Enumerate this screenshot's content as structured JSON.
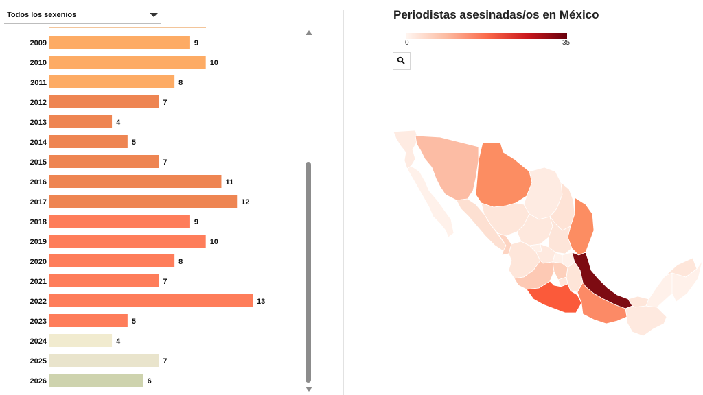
{
  "filter": {
    "selected": "Todos los sexenios"
  },
  "map": {
    "title": "Periodistas asesinadas/os en México",
    "legend_min": "0",
    "legend_max": "35",
    "scale_colors": [
      "#fff5f0",
      "#fcbba1",
      "#fb6a4a",
      "#cb181d",
      "#67000d"
    ],
    "search_icon": "search-icon"
  },
  "chart_data": {
    "type": "bar",
    "orientation": "horizontal",
    "categories": [
      "2009",
      "2010",
      "2011",
      "2012",
      "2013",
      "2014",
      "2015",
      "2016",
      "2017",
      "2018",
      "2019",
      "2020",
      "2021",
      "2022",
      "2023",
      "2024",
      "2025",
      "2026"
    ],
    "values": [
      9,
      10,
      8,
      7,
      4,
      5,
      7,
      11,
      12,
      9,
      10,
      8,
      7,
      13,
      5,
      4,
      7,
      6
    ],
    "colors": [
      "#fdab64",
      "#fdab64",
      "#fdab64",
      "#ee8552",
      "#ee8552",
      "#ee8552",
      "#ee8552",
      "#ee8552",
      "#ee8552",
      "#fe7d5a",
      "#fe7d5a",
      "#fe7d5a",
      "#fe7d5a",
      "#fe7d5a",
      "#fe7d5a",
      "#f1ebcf",
      "#e9e4cc",
      "#ced3ae"
    ],
    "xlim": [
      0,
      13
    ]
  }
}
